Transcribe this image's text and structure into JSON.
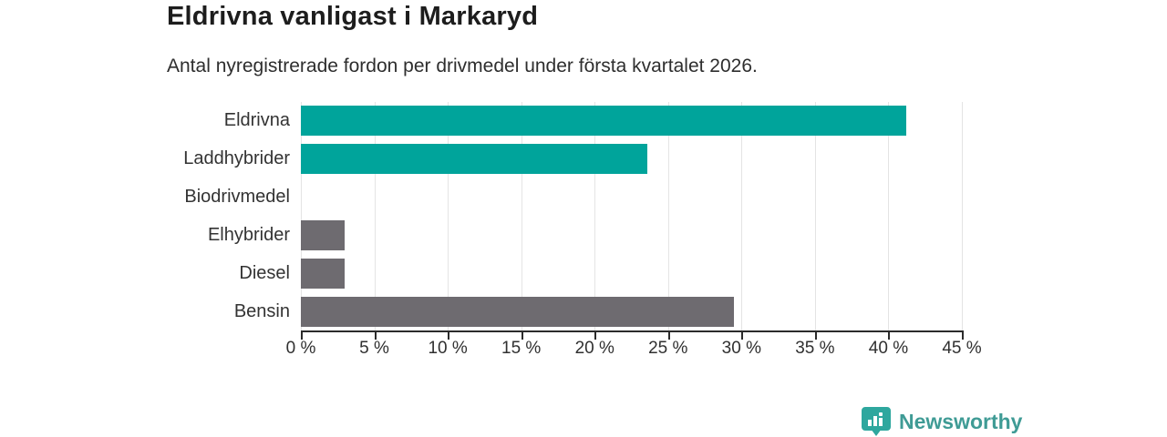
{
  "header": {
    "title": "Eldrivna vanligast i Markaryd",
    "subtitle": "Antal nyregistrerade fordon per drivmedel under första kvartalet 2026."
  },
  "colors": {
    "teal": "#00a49b",
    "gray": "#6e6b70",
    "grid": "#e4e4e4",
    "axis": "#2b2b2b",
    "logo_text": "#3f9b95",
    "logo_icon_bg": "#2ea79e"
  },
  "chart_data": {
    "type": "bar",
    "orientation": "horizontal",
    "title": "Eldrivna vanligast i Markaryd",
    "subtitle": "Antal nyregistrerade fordon per drivmedel under första kvartalet 2026.",
    "categories": [
      "Eldrivna",
      "Laddhybrider",
      "Biodrivmedel",
      "Elhybrider",
      "Diesel",
      "Bensin"
    ],
    "values": [
      41.2,
      23.6,
      0,
      3.0,
      3.0,
      29.5
    ],
    "bar_colors": [
      "teal",
      "teal",
      "gray",
      "gray",
      "gray",
      "gray"
    ],
    "xlabel": "",
    "ylabel": "",
    "xlim": [
      0,
      45
    ],
    "xticks": [
      0,
      5,
      10,
      15,
      20,
      25,
      30,
      35,
      40,
      45
    ],
    "xtick_suffix": " %",
    "grid": true,
    "legend": "none"
  },
  "footer": {
    "brand": "Newsworthy",
    "logo_icon": "bar-chart-speech-bubble-icon"
  }
}
